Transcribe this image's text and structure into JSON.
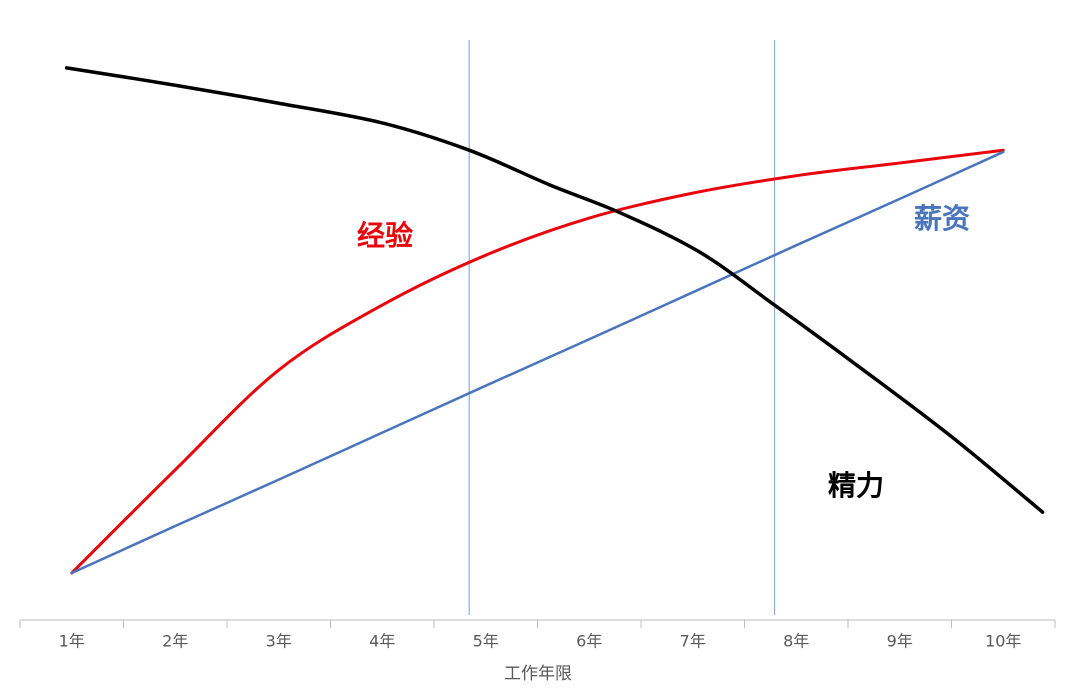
{
  "chart_data": {
    "type": "line",
    "x_label": "工作年限",
    "categories": [
      "1年",
      "2年",
      "3年",
      "4年",
      "5年",
      "6年",
      "7年",
      "8年",
      "9年",
      "10年"
    ],
    "ylim": [
      0,
      100
    ],
    "reference_lines": [
      4.84,
      7.79
    ],
    "series": [
      {
        "name": "经验",
        "color": "#e8060c",
        "values": [
          8.1,
          25.9,
          43.1,
          54.3,
          62.9,
          69.3,
          73.6,
          76.6,
          78.8,
          81.0
        ]
      },
      {
        "name": "薪资",
        "color": "#4a74bb",
        "values": [
          8.1,
          16.2,
          24.2,
          32.3,
          40.4,
          48.4,
          56.5,
          64.6,
          72.6,
          80.7
        ]
      },
      {
        "name": "精力",
        "color": "#000000",
        "x": [
          0.95,
          2,
          3,
          4,
          4.84,
          5.62,
          6.3,
          7.07,
          7.79,
          8.52,
          9.48,
          10.38
        ],
        "values": [
          95.2,
          92.2,
          89.1,
          85.7,
          81.0,
          75.0,
          70.2,
          63.4,
          54.3,
          44.8,
          31.9,
          18.6
        ]
      }
    ]
  }
}
